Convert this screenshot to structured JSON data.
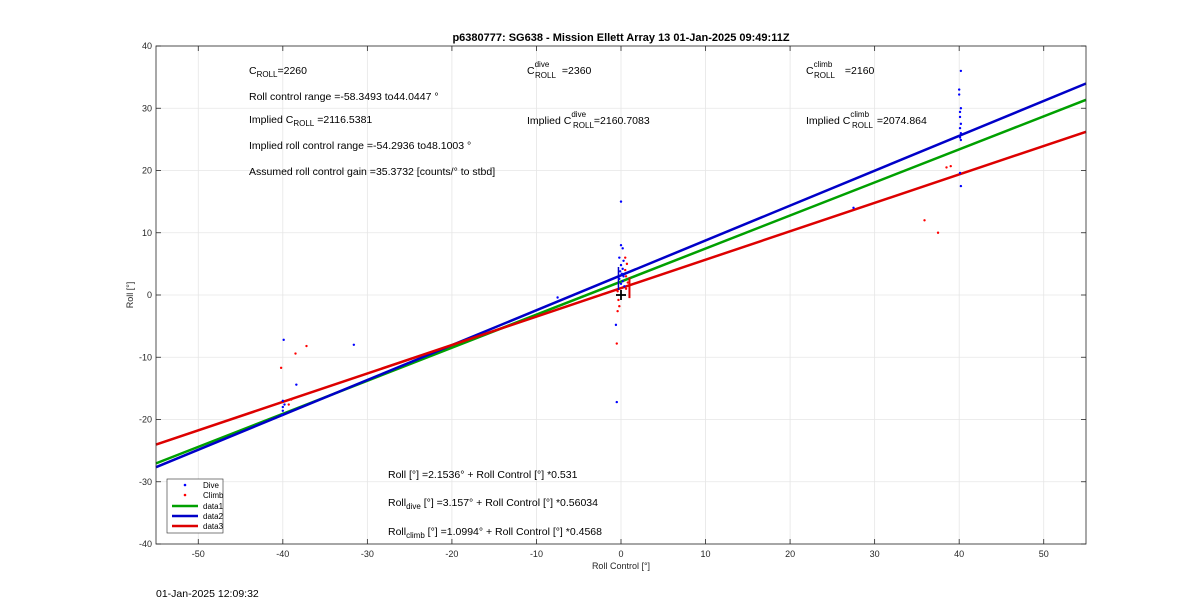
{
  "chart_data": {
    "type": "scatter",
    "title": "p6380777: SG638 - Mission Ellett Array 13 01-Jan-2025 09:49:11Z",
    "xlabel": "Roll Control [°]",
    "ylabel": "Roll [°]",
    "xlim": [
      -55,
      55
    ],
    "ylim": [
      -40,
      40
    ],
    "xticks": [
      -50,
      -40,
      -30,
      -20,
      -10,
      0,
      10,
      20,
      30,
      40,
      50
    ],
    "yticks": [
      -40,
      -30,
      -20,
      -10,
      0,
      10,
      20,
      30,
      40
    ],
    "grid": true,
    "legend_position": "bottom-left",
    "series": [
      {
        "name": "Dive",
        "kind": "points",
        "color": "#0000ff",
        "points": [
          [
            -39.9,
            -7.2
          ],
          [
            -40,
            -17
          ],
          [
            -40,
            -18
          ],
          [
            -40,
            -18.6
          ],
          [
            -40.1,
            -19.3
          ],
          [
            -39.8,
            -17.6
          ],
          [
            -38.4,
            -14.4
          ],
          [
            -31.6,
            -8
          ],
          [
            -7.5,
            -0.4
          ],
          [
            -0.5,
            -17.2
          ],
          [
            -0.6,
            -4.8
          ],
          [
            0,
            15
          ],
          [
            0,
            8
          ],
          [
            0.2,
            7.5
          ],
          [
            -0.2,
            6
          ],
          [
            0.3,
            5.5
          ],
          [
            0,
            4.8
          ],
          [
            0.2,
            4.2
          ],
          [
            -0.1,
            3.8
          ],
          [
            0.1,
            3.4
          ],
          [
            0.3,
            3.0
          ],
          [
            -0.2,
            2.6
          ],
          [
            0.2,
            2.2
          ],
          [
            0,
            1.8
          ],
          [
            0.4,
            1.4
          ],
          [
            40.2,
            36
          ],
          [
            40,
            33
          ],
          [
            40,
            32.2
          ],
          [
            40.2,
            30
          ],
          [
            40.1,
            29.4
          ],
          [
            40.1,
            28.6
          ],
          [
            40.2,
            27.5
          ],
          [
            40.1,
            26.8
          ],
          [
            40.2,
            26
          ],
          [
            40.1,
            25.3
          ],
          [
            40.2,
            24.9
          ],
          [
            40.1,
            19.6
          ],
          [
            40.2,
            17.5
          ],
          [
            27.5,
            14
          ]
        ]
      },
      {
        "name": "Climb",
        "kind": "points",
        "color": "#ff0000",
        "points": [
          [
            -40.2,
            -11.7
          ],
          [
            -38.5,
            -9.4
          ],
          [
            -37.2,
            -8.2
          ],
          [
            -39.3,
            -17.6
          ],
          [
            -39,
            -16.8
          ],
          [
            -0.5,
            -7.8
          ],
          [
            -0.4,
            -2.6
          ],
          [
            -0.2,
            -1.8
          ],
          [
            -0.3,
            -0.8
          ],
          [
            -0.4,
            0.6
          ],
          [
            0.6,
            1.0
          ],
          [
            0.8,
            2.0
          ],
          [
            0.6,
            3.0
          ],
          [
            0.5,
            4.0
          ],
          [
            0.7,
            5.0
          ],
          [
            0.5,
            6.0
          ],
          [
            35.9,
            12
          ],
          [
            37.5,
            10
          ],
          [
            38.5,
            20.5
          ],
          [
            39,
            20.7
          ]
        ]
      },
      {
        "name": "data1",
        "kind": "line",
        "color": "#00a000",
        "intercept": 2.1536,
        "slope": 0.531
      },
      {
        "name": "data2",
        "kind": "line",
        "color": "#0000c8",
        "intercept": 3.157,
        "slope": 0.56034
      },
      {
        "name": "data3",
        "kind": "line",
        "color": "#dd0000",
        "intercept": 1.0994,
        "slope": 0.4568
      }
    ],
    "marker": {
      "x": 0,
      "y": 0
    }
  },
  "annotations": {
    "c_roll_base": "C",
    "c_roll_sub": "ROLL",
    "c_roll_value": "=2260",
    "roll_range": "Roll control range =-58.3493 to44.0447 °",
    "implied_prefix": "Implied C",
    "implied_c_roll_value": "=2116.5381",
    "implied_range": "Implied roll control range =-54.2936 to48.1003 °",
    "gain": "Assumed roll control gain =35.3732 [counts/° to stbd]",
    "c_dive_sup": "dive",
    "c_dive_value": "=2360",
    "implied_c_dive_value": "=2160.7083",
    "c_climb_sup": "climb",
    "c_climb_value": "=2160",
    "implied_c_climb_value": "=2074.864",
    "eq_all": "Roll [°] =2.1536° + Roll Control [°] *0.531",
    "eq_dive_base": "Roll",
    "eq_dive_sub": "dive",
    "eq_dive_rest": " [°] =3.157° + Roll Control [°] *0.56034",
    "eq_climb_base": "Roll",
    "eq_climb_sub": "climb",
    "eq_climb_rest": " [°] =1.0994° + Roll Control [°] *0.4568"
  },
  "footer": "01-Jan-2025 12:09:32"
}
